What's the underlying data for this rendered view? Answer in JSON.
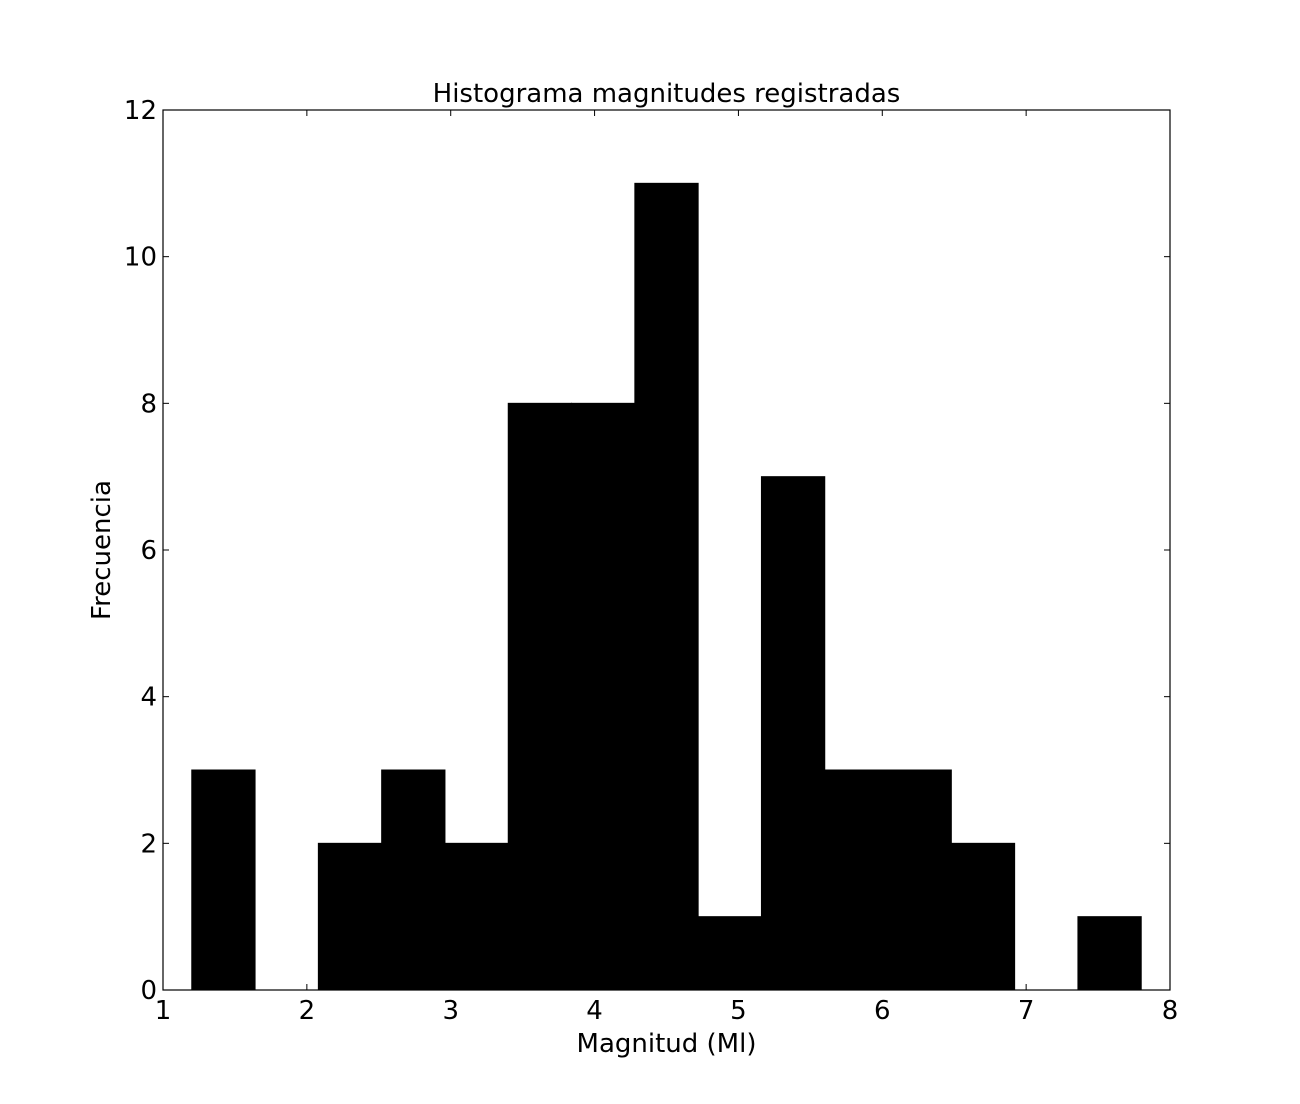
{
  "chart_data": {
    "type": "bar",
    "subtype": "histogram",
    "title": "Histograma magnitudes registradas",
    "xlabel": "Magnitud (Ml)",
    "ylabel": "Frecuencia",
    "xlim": [
      1,
      8
    ],
    "ylim": [
      0,
      12
    ],
    "xticks": [
      1,
      2,
      3,
      4,
      5,
      6,
      7,
      8
    ],
    "yticks": [
      0,
      2,
      4,
      6,
      8,
      10,
      12
    ],
    "grid": false,
    "bar_color": "#000000",
    "bins": [
      {
        "x0": 1.2,
        "x1": 1.64,
        "count": 3
      },
      {
        "x0": 1.64,
        "x1": 2.08,
        "count": 0
      },
      {
        "x0": 2.08,
        "x1": 2.52,
        "count": 2
      },
      {
        "x0": 2.52,
        "x1": 2.96,
        "count": 3
      },
      {
        "x0": 2.96,
        "x1": 3.4,
        "count": 2
      },
      {
        "x0": 3.4,
        "x1": 3.84,
        "count": 8
      },
      {
        "x0": 3.84,
        "x1": 4.28,
        "count": 8
      },
      {
        "x0": 4.28,
        "x1": 4.72,
        "count": 11
      },
      {
        "x0": 4.72,
        "x1": 5.16,
        "count": 1
      },
      {
        "x0": 5.16,
        "x1": 5.6,
        "count": 7
      },
      {
        "x0": 5.6,
        "x1": 6.04,
        "count": 3
      },
      {
        "x0": 6.04,
        "x1": 6.48,
        "count": 3
      },
      {
        "x0": 6.48,
        "x1": 6.92,
        "count": 2
      },
      {
        "x0": 6.92,
        "x1": 7.36,
        "count": 0
      },
      {
        "x0": 7.36,
        "x1": 7.8,
        "count": 1
      }
    ]
  }
}
